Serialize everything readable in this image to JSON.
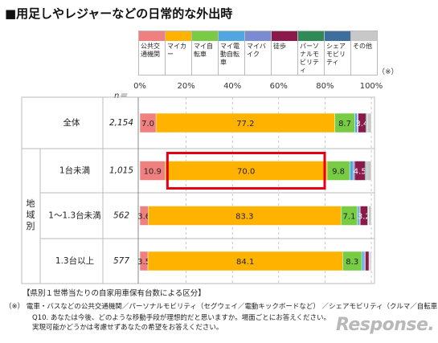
{
  "title": "■用足しやレジャーなどの日常的な外出時",
  "legend_note": "（※）",
  "n_label": "n＝",
  "colors": {
    "公共交通機関": "#f08080",
    "マイカー": "#ffb300",
    "マイ自転車": "#77cc44",
    "マイ電動自転車": "#4fa6e0",
    "マイバイク": "#7a8bd4",
    "徒歩": "#8b1a4a",
    "パーソナルモビリティ": "#2e8b57",
    "シェアモビリティ": "#3d6e9e",
    "その他": "#c8c8c8"
  },
  "legend": [
    {
      "key": "公共交通機関",
      "label": "公共交通機関"
    },
    {
      "key": "マイカー",
      "label": "マイカー"
    },
    {
      "key": "マイ自転車",
      "label": "マイ自転車"
    },
    {
      "key": "マイ電動自転車",
      "label": "マイ電動自転車"
    },
    {
      "key": "マイバイク",
      "label": "マイバイク"
    },
    {
      "key": "徒歩",
      "label": "徒歩"
    },
    {
      "key": "パーソナルモビリティ",
      "label": "パーソナルモビリティ"
    },
    {
      "key": "シェアモビリティ",
      "label": "シェアモビリティ"
    },
    {
      "key": "その他",
      "label": "その他"
    }
  ],
  "chart_data": {
    "type": "bar",
    "orientation": "horizontal",
    "stacked": true,
    "xlim": [
      0,
      100
    ],
    "xticks": [
      "0%",
      "20%",
      "40%",
      "60%",
      "80%",
      "100%"
    ],
    "group_label": "地域別",
    "categories": [
      "全体",
      "1台未満",
      "1～1.3台未満",
      "1.3台以上"
    ],
    "n": [
      "2,154",
      "1,015",
      "562",
      "577"
    ],
    "series": [
      {
        "name": "公共交通機関",
        "values": [
          7.0,
          10.9,
          3.6,
          3.5
        ],
        "labels": [
          "7.0",
          "10.9",
          "3.6",
          "3.5"
        ]
      },
      {
        "name": "マイカー",
        "values": [
          77.2,
          70.0,
          83.3,
          84.1
        ],
        "labels": [
          "77.2",
          "70.0",
          "83.3",
          "84.1"
        ]
      },
      {
        "name": "マイ自転車",
        "values": [
          8.7,
          9.8,
          7.1,
          8.3
        ],
        "labels": [
          "8.7",
          "9.8",
          "7.1",
          "8.3"
        ]
      },
      {
        "name": "マイ電動自転車",
        "values": [
          1.0,
          1.5,
          0.8,
          1.0
        ],
        "labels": [
          "",
          "",
          "",
          ""
        ]
      },
      {
        "name": "マイバイク",
        "values": [
          0.4,
          0.6,
          0.4,
          0.5
        ],
        "labels": [
          "",
          "",
          "",
          ""
        ]
      },
      {
        "name": "徒歩",
        "values": [
          3.4,
          4.5,
          3.2,
          1.6
        ],
        "labels": [
          "3.4",
          "4.5",
          "3.2",
          ""
        ]
      },
      {
        "name": "パーソナルモビリティ",
        "values": [
          0.4,
          0.4,
          0.3,
          0.3
        ],
        "labels": [
          "",
          "",
          "",
          ""
        ]
      },
      {
        "name": "シェアモビリティ",
        "values": [
          0.3,
          0.4,
          0.2,
          0.2
        ],
        "labels": [
          "",
          "",
          "",
          ""
        ]
      },
      {
        "name": "その他",
        "values": [
          1.6,
          1.9,
          1.1,
          0.5
        ],
        "labels": [
          "",
          "",
          "",
          ""
        ]
      }
    ],
    "highlight": {
      "category": "1台未満",
      "series": "マイカー"
    }
  },
  "footnote_header": "【県別１世帯当たりの自家用車保有台数による区分】",
  "notes": [
    "（※） 電車・バスなどの公共交通機関／パーソナルモビリティ（セグウェイ／電動キックボードなど） ／シェアモビリティ（クルマ／自転車など）",
    "Q10. あなたは今後、どのような移動手段が理想的だと思いますか。場面ごとにお答えください。",
    "実現可能かどうかは考慮せずあなたの希望をお答えください。"
  ],
  "logo": "Response."
}
